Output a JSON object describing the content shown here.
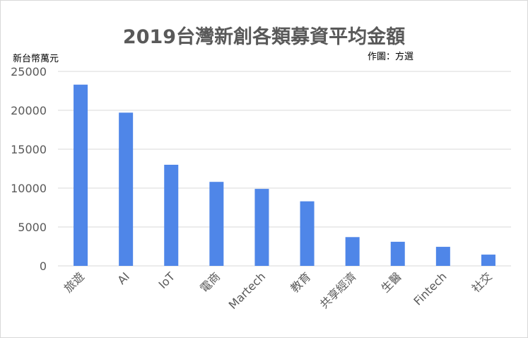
{
  "chart_data": {
    "type": "bar",
    "title": "2019台灣新創各類募資平均金額",
    "unit_label": "新台幣萬元",
    "credit": "作圖：方選",
    "categories": [
      "旅遊",
      "AI",
      "IoT",
      "電商",
      "Martech",
      "教育",
      "共享經濟",
      "生醫",
      "Fintech",
      "社交"
    ],
    "values": [
      23300,
      19700,
      13000,
      10800,
      9900,
      8300,
      3700,
      3100,
      2450,
      1450
    ],
    "ylim": [
      0,
      25000
    ],
    "yticks": [
      0,
      5000,
      10000,
      15000,
      20000,
      25000
    ],
    "grid": true,
    "bar_color": "#4f86e8"
  }
}
